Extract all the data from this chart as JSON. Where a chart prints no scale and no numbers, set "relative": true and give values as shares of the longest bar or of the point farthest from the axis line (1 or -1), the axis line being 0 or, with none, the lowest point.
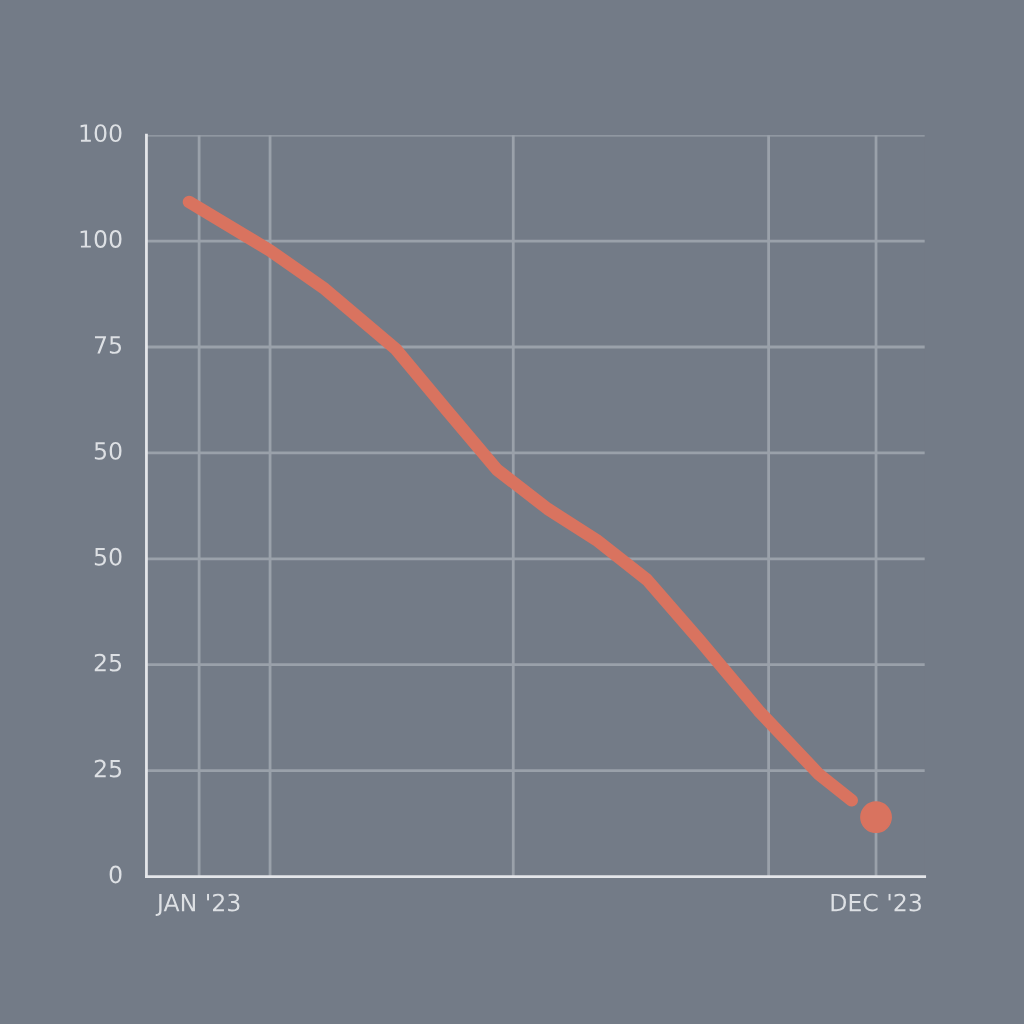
{
  "chart_data": {
    "type": "line",
    "relative": true,
    "xlim": [
      "2022-12-06",
      "2023-12-25"
    ],
    "xticks": [
      {
        "value": "2023-01-01",
        "label": "JAN '23"
      },
      {
        "value": "2023-02-05",
        "label": null
      },
      {
        "value": "2023-06-05",
        "label": null
      },
      {
        "value": "2023-10-09",
        "label": null
      },
      {
        "value": "2023-12-01",
        "label": "DEC '23"
      }
    ],
    "annotations": [
      "0",
      "25",
      "25",
      "50",
      "50",
      "75",
      "100",
      "100"
    ],
    "grid": true,
    "series": [
      {
        "color": "#d9735f",
        "line_style": "solid",
        "x": [
          "2022-12-27",
          "2023-02-05",
          "2023-03-04",
          "2023-04-08",
          "2023-05-03",
          "2023-05-28",
          "2023-06-22",
          "2023-07-16",
          "2023-08-10",
          "2023-09-05",
          "2023-10-04",
          "2023-11-03",
          "2023-11-19"
        ],
        "values": [
          1,
          0.928,
          0.871,
          0.782,
          0.692,
          0.603,
          0.545,
          0.499,
          0.44,
          0.35,
          0.246,
          0.151,
          0.113
        ]
      },
      {
        "type": "scatter",
        "color": "#d9735f",
        "marker": "circle",
        "x": [
          "2023-12-01"
        ],
        "values": [
          0.088
        ]
      }
    ]
  }
}
